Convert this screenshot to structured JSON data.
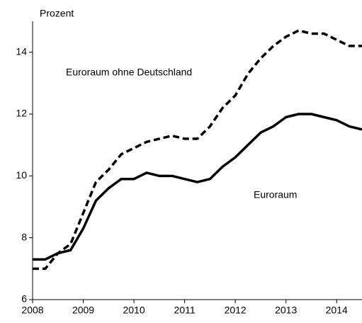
{
  "chart_data": {
    "type": "line",
    "y_label": "Prozent",
    "x": [
      2008,
      2008.25,
      2008.5,
      2008.75,
      2009,
      2009.25,
      2009.5,
      2009.75,
      2010,
      2010.25,
      2010.5,
      2010.75,
      2011,
      2011.25,
      2011.5,
      2011.75,
      2012,
      2012.25,
      2012.5,
      2012.75,
      2013,
      2013.25,
      2013.5,
      2013.75,
      2014,
      2014.25,
      2014.5
    ],
    "series": [
      {
        "name": "Euroraum ohne Deutschland",
        "color": "#000000",
        "dashed": true,
        "values": [
          7.0,
          7.0,
          7.5,
          7.8,
          8.8,
          9.8,
          10.2,
          10.7,
          10.9,
          11.1,
          11.2,
          11.3,
          11.2,
          11.2,
          11.6,
          12.2,
          12.6,
          13.3,
          13.8,
          14.2,
          14.5,
          14.7,
          14.6,
          14.6,
          14.4,
          14.2,
          14.2
        ]
      },
      {
        "name": "Euroraum",
        "color": "#000000",
        "dashed": false,
        "values": [
          7.3,
          7.3,
          7.5,
          7.6,
          8.3,
          9.2,
          9.6,
          9.9,
          9.9,
          10.1,
          10.0,
          10.0,
          9.9,
          9.8,
          9.9,
          10.3,
          10.6,
          11.0,
          11.4,
          11.6,
          11.9,
          12.0,
          12.0,
          11.9,
          11.8,
          11.6,
          11.5
        ]
      }
    ],
    "xlim": [
      2008,
      2014.5
    ],
    "xticks": [
      2008,
      2009,
      2010,
      2011,
      2012,
      2013,
      2014
    ],
    "ylim": [
      6,
      15
    ],
    "yticks": [
      6,
      8,
      10,
      12,
      14
    ]
  }
}
